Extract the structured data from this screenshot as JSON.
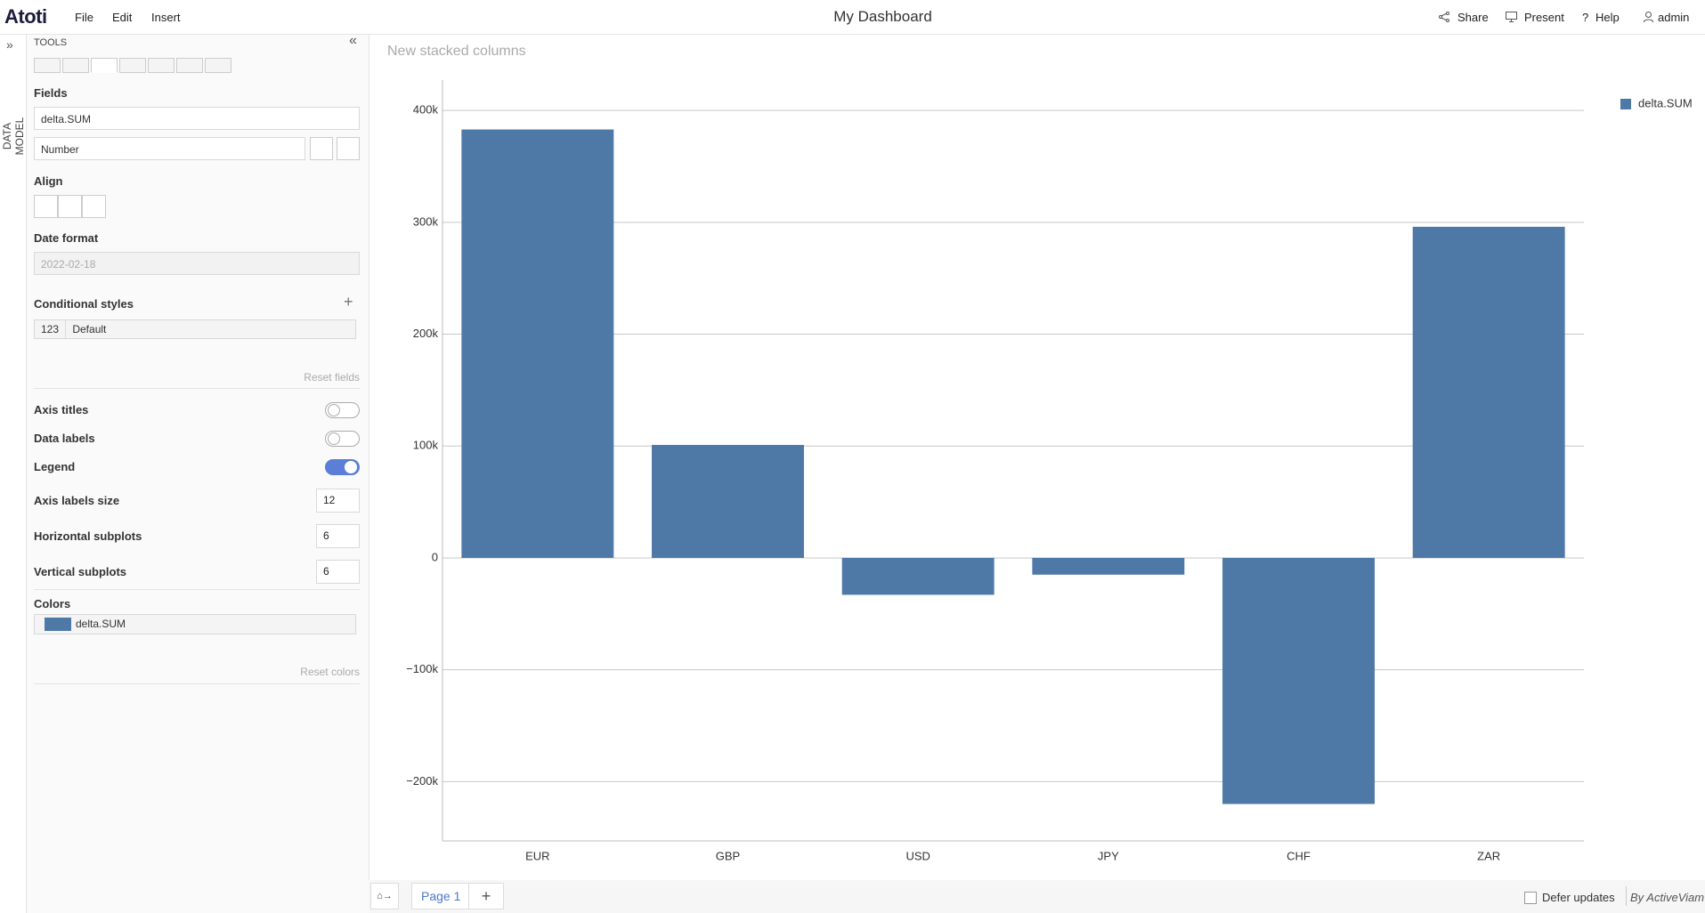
{
  "header": {
    "logo": "Atoti",
    "menu": [
      "File",
      "Edit",
      "Insert"
    ],
    "title": "My Dashboard",
    "actions": [
      "Share",
      "Present",
      "Help",
      "admin"
    ]
  },
  "sidebar": {
    "data_model": "DATA MODEL",
    "tools_title": "TOOLS",
    "fields_label": "Fields",
    "field_value": "delta.SUM",
    "format_value": "Number",
    "align_label": "Align",
    "date_format_label": "Date format",
    "date_format_value": "2022-02-18",
    "conditional_styles_label": "Conditional styles",
    "cond_style": {
      "code": "123",
      "name": "Default"
    },
    "reset_fields": "Reset fields",
    "toggles": [
      {
        "label": "Axis titles",
        "on": false
      },
      {
        "label": "Data labels",
        "on": false
      },
      {
        "label": "Legend",
        "on": true
      }
    ],
    "inputs": [
      {
        "label": "Axis labels size",
        "value": 12
      },
      {
        "label": "Horizontal subplots",
        "value": 6
      },
      {
        "label": "Vertical subplots",
        "value": 6
      }
    ],
    "colors_label": "Colors",
    "color_entry": "delta.SUM",
    "reset_colors": "Reset colors"
  },
  "footer": {
    "page_tab": "Page 1",
    "defer": "Defer updates",
    "brand": "By ActiveViam"
  },
  "chart_data": {
    "type": "bar",
    "title": "New stacked columns",
    "categories": [
      "EUR",
      "GBP",
      "USD",
      "JPY",
      "CHF",
      "ZAR"
    ],
    "series": [
      {
        "name": "delta.SUM",
        "color": "#4e79a7",
        "values": [
          383000,
          101000,
          -33000,
          -15000,
          -220000,
          296000
        ]
      }
    ],
    "ylim": [
      -253000,
      416000
    ],
    "yticks": [
      {
        "value": -200000,
        "label": "−200k"
      },
      {
        "value": -100000,
        "label": "−100k"
      },
      0,
      {
        "value": 100000,
        "label": "100k"
      },
      {
        "value": 200000,
        "label": "200k"
      },
      {
        "value": 300000,
        "label": "300k"
      },
      {
        "value": 400000,
        "label": "400k"
      }
    ],
    "grid": true,
    "legend": "top-right"
  }
}
